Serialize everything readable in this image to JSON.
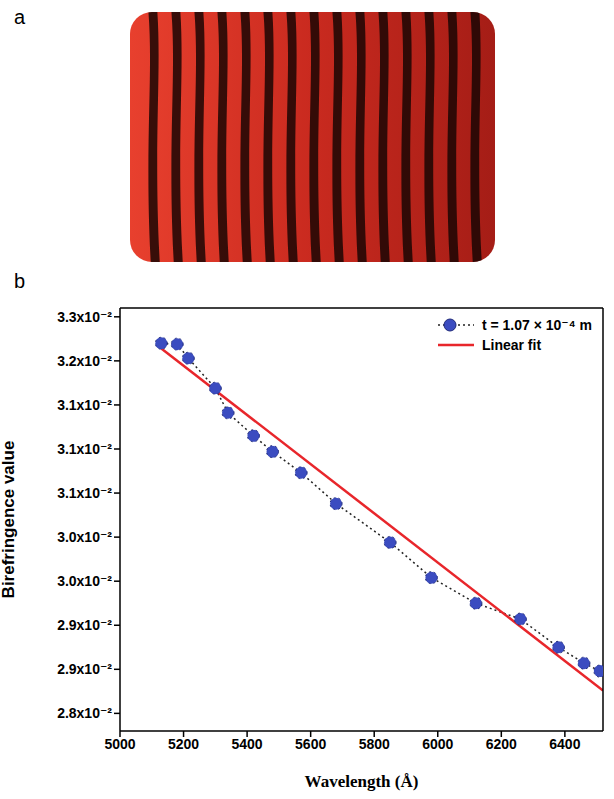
{
  "panel_labels": [
    "a",
    "b"
  ],
  "chart_data": {
    "type": "line",
    "x_label": "Wavelength (Å)",
    "y_label": "Birefringence value",
    "xlim": [
      5000,
      6520
    ],
    "xticks": [
      5000,
      5200,
      5400,
      5600,
      5800,
      6000,
      6200,
      6400
    ],
    "ylim": [
      0.0278,
      0.0326
    ],
    "yticks": [
      {
        "value": 0.028,
        "label": "2.8x10⁻²"
      },
      {
        "value": 0.0285,
        "label": "2.9x10⁻²"
      },
      {
        "value": 0.029,
        "label": "2.9x10⁻²"
      },
      {
        "value": 0.0295,
        "label": "3.0x10⁻²"
      },
      {
        "value": 0.03,
        "label": "3.0x10⁻²"
      },
      {
        "value": 0.0305,
        "label": "3.1x10⁻²"
      },
      {
        "value": 0.031,
        "label": "3.1x10⁻²"
      },
      {
        "value": 0.0315,
        "label": "3.1x10⁻²"
      },
      {
        "value": 0.032,
        "label": "3.2x10⁻²"
      },
      {
        "value": 0.0325,
        "label": "3.3x10⁻²"
      }
    ],
    "grid": false,
    "legend": "top right",
    "series": [
      {
        "name": "t = 1.07 × 10⁻⁴ m",
        "type": "scatter",
        "marker": "circle",
        "line_style": "dotted",
        "color": "#3b4cc0",
        "x": [
          5130,
          5180,
          5215,
          5300,
          5340,
          5420,
          5480,
          5570,
          5680,
          5850,
          5980,
          6120,
          6260,
          6380,
          6460,
          6510
        ],
        "values": [
          0.0322,
          0.03219,
          0.03203,
          0.03169,
          0.03141,
          0.03115,
          0.03097,
          0.03073,
          0.03038,
          0.02994,
          0.02954,
          0.02925,
          0.02907,
          0.02875,
          0.02857,
          0.02848
        ]
      },
      {
        "name": "Linear fit",
        "type": "line",
        "marker": "none",
        "line_style": "solid",
        "color": "#e8262b",
        "x": [
          5130,
          6520
        ],
        "values": [
          0.03214,
          0.02826
        ]
      }
    ]
  }
}
